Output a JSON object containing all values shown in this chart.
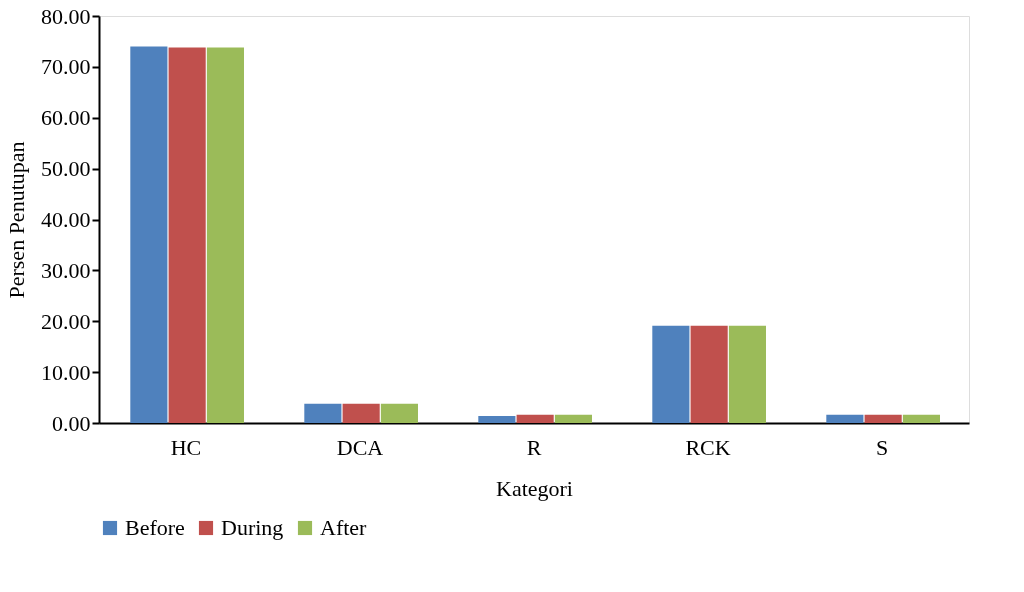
{
  "chart_data": {
    "type": "bar",
    "xlabel": "Kategori",
    "ylabel": "Persen  Penutupan",
    "categories": [
      "HC",
      "DCA",
      "R",
      "RCK",
      "S"
    ],
    "series": [
      {
        "name": "Before",
        "color": "#4f81bd",
        "values": [
          74.0,
          3.8,
          1.4,
          19.1,
          1.6
        ]
      },
      {
        "name": "During",
        "color": "#c0504d",
        "values": [
          73.8,
          3.8,
          1.6,
          19.1,
          1.6
        ]
      },
      {
        "name": "After",
        "color": "#9bbb59",
        "values": [
          73.8,
          3.8,
          1.6,
          19.1,
          1.6
        ]
      }
    ],
    "ylim": [
      0,
      80
    ],
    "yticks": [
      {
        "value": 0,
        "label": "0.00"
      },
      {
        "value": 10,
        "label": "10.00"
      },
      {
        "value": 20,
        "label": "20.00"
      },
      {
        "value": 30,
        "label": "30.00"
      },
      {
        "value": 40,
        "label": "40.00"
      },
      {
        "value": 50,
        "label": "50.00"
      },
      {
        "value": 60,
        "label": "60.00"
      },
      {
        "value": 70,
        "label": "70.00"
      },
      {
        "value": 80,
        "label": "80.00"
      }
    ],
    "grid": false,
    "legend": "bottom"
  }
}
